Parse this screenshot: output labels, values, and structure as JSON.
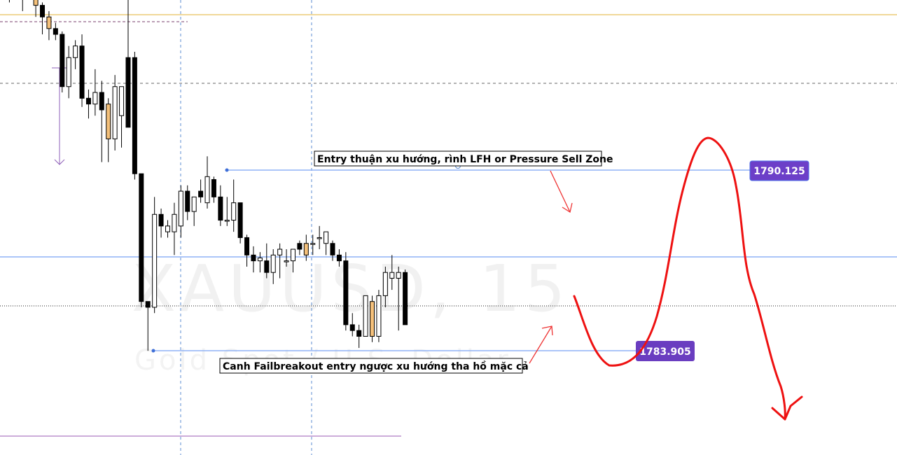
{
  "watermark": {
    "symbol": "XAUUSD, 15",
    "description": "Gold Spot / U.S. Dollar"
  },
  "annotations": {
    "top_note": "Entry thuận xu hướng, rình LFH or Pressure Sell Zone",
    "bottom_note": "Canh Failbreakout entry ngược xu hướng tha hồ mặc cả",
    "upper_price": "1790.125",
    "lower_price": "1783.905"
  },
  "colors": {
    "bull_body": "#ffffff",
    "bull_highlight": "#f4c07a",
    "bear_body": "#000000",
    "level_line": "#8fb2f5",
    "upper_label_bg": "#6c3fc8",
    "lower_label_bg": "#6a3dc0",
    "drawing": "#ee1111",
    "gold_line": "#e0b030",
    "purple_line": "#9b59b6",
    "grid": "#5b8bd0"
  },
  "chart_data": {
    "type": "candlestick",
    "symbol": "XAUUSD",
    "timeframe": "15",
    "price_labels": [
      1790.125,
      1783.905
    ],
    "candles": [
      {
        "o": 1797.8,
        "h": 1798.6,
        "l": 1797.0,
        "c": 1797.6
      },
      {
        "o": 1797.6,
        "h": 1798.4,
        "l": 1795.9,
        "c": 1798.0
      },
      {
        "o": 1798.0,
        "h": 1798.6,
        "l": 1796.4,
        "c": 1796.8
      },
      {
        "o": 1796.6,
        "h": 1797.6,
        "l": 1795.6,
        "c": 1796.2
      },
      {
        "o": 1796.6,
        "h": 1797.8,
        "l": 1796.0,
        "c": 1797.4
      },
      {
        "o": 1797.4,
        "h": 1797.8,
        "l": 1795.4,
        "c": 1795.8,
        "hl": true
      },
      {
        "o": 1795.8,
        "h": 1795.9,
        "l": 1794.8,
        "c": 1795.4
      },
      {
        "o": 1795.0,
        "h": 1795.6,
        "l": 1794.6,
        "c": 1795.4,
        "hl": true
      },
      {
        "o": 1795.0,
        "h": 1795.2,
        "l": 1794.6,
        "c": 1794.8
      },
      {
        "o": 1794.8,
        "h": 1794.9,
        "l": 1792.8,
        "c": 1793.0
      },
      {
        "o": 1793.0,
        "h": 1794.4,
        "l": 1792.6,
        "c": 1794.0
      },
      {
        "o": 1794.0,
        "h": 1794.6,
        "l": 1793.6,
        "c": 1794.4
      },
      {
        "o": 1794.4,
        "h": 1794.8,
        "l": 1792.3,
        "c": 1792.6
      },
      {
        "o": 1792.6,
        "h": 1792.9,
        "l": 1791.9,
        "c": 1792.4
      },
      {
        "o": 1792.4,
        "h": 1793.6,
        "l": 1792.0,
        "c": 1792.8
      },
      {
        "o": 1792.8,
        "h": 1793.2,
        "l": 1790.4,
        "c": 1792.2
      },
      {
        "o": 1792.4,
        "h": 1792.6,
        "l": 1790.4,
        "c": 1791.2,
        "hl": true
      },
      {
        "o": 1791.2,
        "h": 1793.4,
        "l": 1790.8,
        "c": 1793.0
      },
      {
        "o": 1792.0,
        "h": 1793.0,
        "l": 1790.9,
        "c": 1793.0
      },
      {
        "o": 1794.0,
        "h": 1798.6,
        "l": 1791.6,
        "c": 1791.6
      },
      {
        "o": 1794.0,
        "h": 1794.2,
        "l": 1789.8,
        "c": 1790.0
      },
      {
        "o": 1790.0,
        "h": 1790.0,
        "l": 1785.4,
        "c": 1785.6
      },
      {
        "o": 1785.6,
        "h": 1785.6,
        "l": 1783.9,
        "c": 1785.4
      },
      {
        "o": 1785.4,
        "h": 1789.2,
        "l": 1785.2,
        "c": 1788.6
      },
      {
        "o": 1788.6,
        "h": 1788.8,
        "l": 1787.8,
        "c": 1788.2
      },
      {
        "o": 1788.0,
        "h": 1788.4,
        "l": 1787.8,
        "c": 1788.2
      },
      {
        "o": 1788.0,
        "h": 1789.0,
        "l": 1787.2,
        "c": 1788.6
      },
      {
        "o": 1788.2,
        "h": 1789.6,
        "l": 1787.8,
        "c": 1789.4
      },
      {
        "o": 1789.4,
        "h": 1789.6,
        "l": 1788.4,
        "c": 1788.7
      },
      {
        "o": 1788.7,
        "h": 1789.2,
        "l": 1788.2,
        "c": 1789.2
      },
      {
        "o": 1789.4,
        "h": 1789.8,
        "l": 1789.0,
        "c": 1789.2
      },
      {
        "o": 1789.0,
        "h": 1790.6,
        "l": 1788.8,
        "c": 1789.9
      },
      {
        "o": 1789.8,
        "h": 1789.9,
        "l": 1789.0,
        "c": 1789.2
      },
      {
        "o": 1789.2,
        "h": 1789.6,
        "l": 1788.2,
        "c": 1788.4
      },
      {
        "o": 1788.4,
        "h": 1789.2,
        "l": 1788.2,
        "c": 1788.4
      },
      {
        "o": 1788.4,
        "h": 1789.8,
        "l": 1788.0,
        "c": 1789.0
      },
      {
        "o": 1789.0,
        "h": 1789.0,
        "l": 1787.6,
        "c": 1787.8
      },
      {
        "o": 1787.8,
        "h": 1787.9,
        "l": 1786.8,
        "c": 1787.2
      },
      {
        "o": 1787.2,
        "h": 1787.5,
        "l": 1786.6,
        "c": 1787.0
      },
      {
        "o": 1787.0,
        "h": 1787.3,
        "l": 1786.6,
        "c": 1787.1
      },
      {
        "o": 1787.0,
        "h": 1787.6,
        "l": 1786.4,
        "c": 1786.6
      },
      {
        "o": 1786.6,
        "h": 1787.4,
        "l": 1786.2,
        "c": 1787.2
      },
      {
        "o": 1787.2,
        "h": 1787.6,
        "l": 1786.4,
        "c": 1787.4
      },
      {
        "o": 1787.0,
        "h": 1787.4,
        "l": 1786.8,
        "c": 1787.0
      },
      {
        "o": 1787.0,
        "h": 1787.4,
        "l": 1786.6,
        "c": 1787.4
      },
      {
        "o": 1787.6,
        "h": 1787.7,
        "l": 1787.2,
        "c": 1787.4
      },
      {
        "o": 1787.2,
        "h": 1787.9,
        "l": 1787.0,
        "c": 1787.6,
        "hl": true
      },
      {
        "o": 1787.6,
        "h": 1787.9,
        "l": 1787.2,
        "c": 1787.6
      },
      {
        "o": 1787.8,
        "h": 1788.2,
        "l": 1787.4,
        "c": 1787.8
      },
      {
        "o": 1787.6,
        "h": 1788.0,
        "l": 1787.2,
        "c": 1788.0
      },
      {
        "o": 1787.6,
        "h": 1787.7,
        "l": 1787.0,
        "c": 1787.2
      },
      {
        "o": 1787.2,
        "h": 1787.4,
        "l": 1786.8,
        "c": 1787.0
      },
      {
        "o": 1787.0,
        "h": 1787.3,
        "l": 1784.6,
        "c": 1784.8
      },
      {
        "o": 1784.8,
        "h": 1785.2,
        "l": 1784.4,
        "c": 1784.6
      },
      {
        "o": 1784.6,
        "h": 1784.8,
        "l": 1784.0,
        "c": 1784.4
      },
      {
        "o": 1784.4,
        "h": 1785.8,
        "l": 1784.4,
        "c": 1785.8
      },
      {
        "o": 1784.4,
        "h": 1785.8,
        "l": 1784.2,
        "c": 1785.6,
        "hl": true
      },
      {
        "o": 1784.4,
        "h": 1786.0,
        "l": 1784.2,
        "c": 1785.8
      },
      {
        "o": 1785.8,
        "h": 1786.8,
        "l": 1785.4,
        "c": 1786.6
      },
      {
        "o": 1786.4,
        "h": 1787.2,
        "l": 1786.0,
        "c": 1786.6
      },
      {
        "o": 1786.4,
        "h": 1786.8,
        "l": 1784.6,
        "c": 1786.6
      },
      {
        "o": 1786.6,
        "h": 1786.7,
        "l": 1784.8,
        "c": 1784.8
      }
    ]
  }
}
